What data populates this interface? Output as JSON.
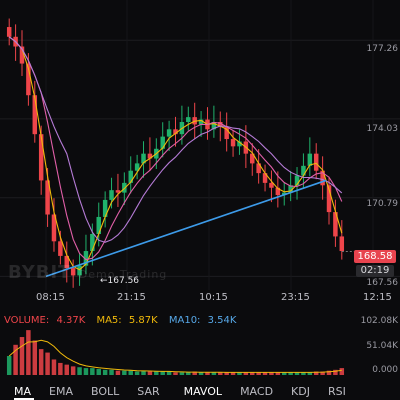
{
  "chart_data": {
    "type": "candlestick",
    "y_axis_labels": [
      "177.26",
      "174.03",
      "170.79",
      "167.56"
    ],
    "x_axis_labels": [
      "08:15",
      "21:15",
      "10:15",
      "23:15",
      "12:15"
    ],
    "ylim": [
      167.0,
      178.5
    ],
    "trendline": {
      "from_time": "08:15",
      "from_price": 167.56,
      "to_time": "23:15",
      "to_price": 171.2
    },
    "low_marker": "167.56",
    "current_price": "168.58",
    "countdown": "02:19",
    "closes": [
      177.4,
      177.0,
      176.3,
      175.0,
      173.4,
      171.5,
      170.1,
      169.0,
      168.4,
      167.9,
      167.6,
      168.0,
      168.6,
      169.3,
      170.0,
      170.7,
      171.1,
      171.0,
      171.4,
      171.9,
      172.2,
      172.6,
      172.4,
      172.8,
      173.3,
      173.6,
      173.4,
      173.9,
      174.1,
      173.8,
      174.0,
      173.6,
      173.9,
      173.7,
      173.2,
      172.9,
      173.1,
      172.6,
      172.2,
      171.8,
      171.4,
      171.2,
      170.9,
      171.0,
      171.3,
      171.7,
      172.1,
      172.6,
      171.9,
      171.3,
      170.2,
      169.2,
      168.6
    ],
    "volume": {
      "label": "VOLUME:",
      "value": "4.37K",
      "ma5_label": "MA5:",
      "ma5": "5.87K",
      "ma10_label": "MA10:",
      "ma10": "3.54K",
      "axis_labels": [
        "102.08K",
        "51.04K",
        "0.000"
      ],
      "bars": [
        22,
        35,
        44,
        52,
        40,
        30,
        26,
        18,
        14,
        12,
        10,
        9,
        8,
        8,
        7,
        6,
        6,
        5,
        5,
        5,
        4,
        5,
        4,
        4,
        4,
        4,
        3,
        3,
        3,
        4,
        3,
        3,
        3,
        3,
        3,
        3,
        3,
        3,
        3,
        3,
        3,
        3,
        3,
        3,
        3,
        3,
        3,
        3,
        4,
        4,
        5,
        6,
        8
      ]
    }
  },
  "watermark": {
    "brand": "BYBIT",
    "sub": "Demo Trading"
  },
  "colors": {
    "up": "#20b26c",
    "down": "#ef454a",
    "ma_fast": "#f0b90b",
    "ma_mid": "#e05fa8",
    "ma_slow": "#b57bd6",
    "trendline": "#3d9be9"
  },
  "tabs": [
    {
      "label": "MA",
      "active": true
    },
    {
      "label": "EMA",
      "active": false
    },
    {
      "label": "BOLL",
      "active": false
    },
    {
      "label": "SAR",
      "active": false
    },
    {
      "label": "MAVOL",
      "active": true
    },
    {
      "label": "MACD",
      "active": false
    },
    {
      "label": "KDJ",
      "active": false
    },
    {
      "label": "RSI",
      "active": false
    }
  ]
}
